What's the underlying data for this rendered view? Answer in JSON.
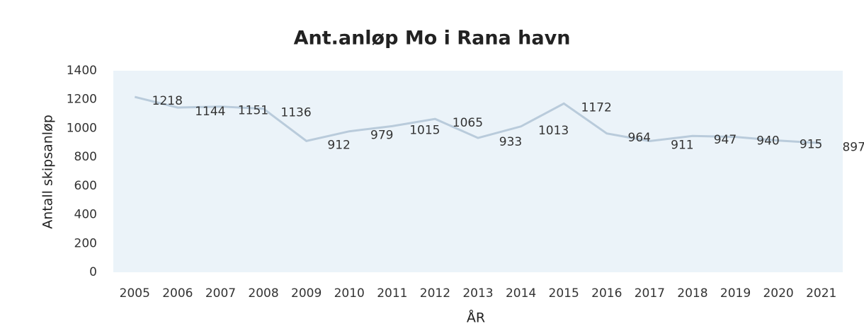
{
  "chart_data": {
    "type": "line",
    "title": "Ant.anløp Mo i Rana havn",
    "x_label": "ÅR",
    "y_label": "Antall skipsanløp",
    "categories": [
      "2005",
      "2006",
      "2007",
      "2008",
      "2009",
      "2010",
      "2011",
      "2012",
      "2013",
      "2014",
      "2015",
      "2016",
      "2017",
      "2018",
      "2019",
      "2020",
      "2021"
    ],
    "values": [
      1218,
      1144,
      1151,
      1136,
      912,
      979,
      1015,
      1065,
      933,
      1013,
      1172,
      964,
      911,
      947,
      940,
      915,
      897
    ],
    "color": "#b9cbdb",
    "ylim": [
      0,
      1400
    ],
    "yticks": [
      0,
      200,
      400,
      600,
      800,
      1000,
      1200,
      1400
    ],
    "grid": false
  }
}
